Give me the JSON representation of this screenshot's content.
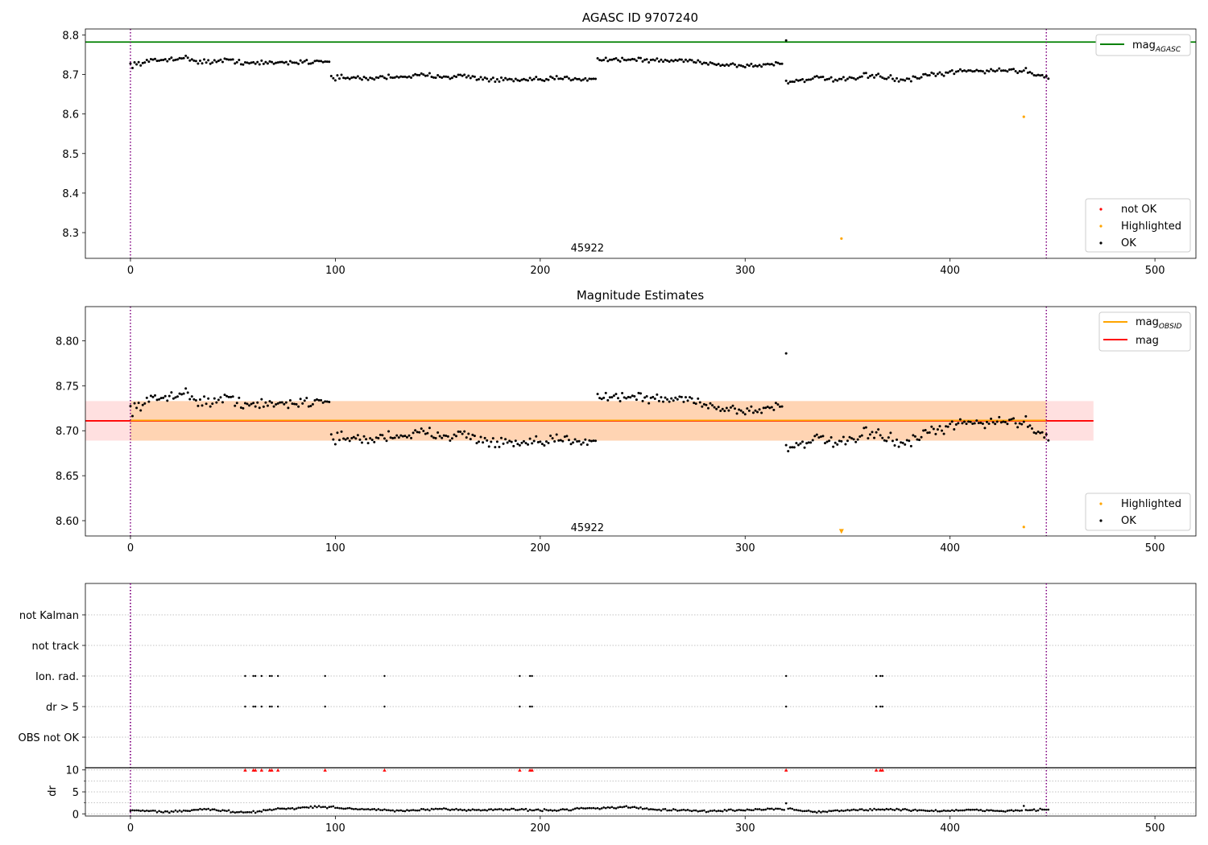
{
  "chart_data": [
    {
      "type": "scatter",
      "title": "AGASC ID 9707240",
      "xlabel": "",
      "ylabel": "",
      "xlim": [
        -22,
        520
      ],
      "ylim": [
        8.235,
        8.815
      ],
      "xticks": [
        0,
        100,
        200,
        300,
        400,
        500
      ],
      "yticks": [
        8.3,
        8.4,
        8.5,
        8.6,
        8.7,
        8.8
      ],
      "ytick_labels": [
        "8.3",
        "8.4",
        "8.5",
        "8.6",
        "8.7",
        "8.8"
      ],
      "hlines": [
        {
          "name": "mag_AGASC",
          "y": 8.782,
          "color": "#008000"
        }
      ],
      "vlines": [
        0,
        447
      ],
      "annotation": {
        "text": "45922",
        "x": 223,
        "y": 8.26
      },
      "ok_series": {
        "name": "OK",
        "color": "#000000",
        "segments": [
          {
            "x0": 0,
            "x1": 97,
            "knots": [
              8.725,
              8.735,
              8.742,
              8.732,
              8.735,
              8.728,
              8.73,
              8.732,
              8.735
            ],
            "noise": 0.007
          },
          {
            "x0": 98,
            "x1": 227,
            "knots": [
              8.692,
              8.69,
              8.695,
              8.697,
              8.695,
              8.686,
              8.685,
              8.69,
              8.69
            ],
            "noise": 0.007
          },
          {
            "x0": 228,
            "x1": 318,
            "knots": [
              8.738,
              8.738,
              8.735,
              8.735,
              8.725,
              8.722,
              8.728
            ],
            "noise": 0.006
          },
          {
            "x0": 320,
            "x1": 448,
            "knots": [
              8.682,
              8.69,
              8.686,
              8.698,
              8.685,
              8.698,
              8.708,
              8.71,
              8.71,
              8.695
            ],
            "noise": 0.007
          }
        ],
        "extra_points": [
          [
            320,
            8.786
          ]
        ]
      },
      "highlighted": {
        "name": "Highlighted",
        "color": "#FFA500",
        "points": [
          [
            347,
            8.285
          ],
          [
            436,
            8.593
          ]
        ]
      },
      "not_ok": {
        "name": "not OK",
        "color": "#FF0000",
        "points": []
      },
      "legend_upper": {
        "position": "top-right",
        "entries": [
          {
            "label": "mag",
            "sub": "AGASC"
          }
        ]
      },
      "legend_lower": {
        "position": "bottom-right",
        "entries": [
          "not OK",
          "Highlighted",
          "OK"
        ]
      }
    },
    {
      "type": "scatter",
      "title": "Magnitude Estimates",
      "xlabel": "",
      "ylabel": "",
      "xlim": [
        -22,
        520
      ],
      "ylim": [
        8.583,
        8.838
      ],
      "xticks": [
        0,
        100,
        200,
        300,
        400,
        500
      ],
      "yticks": [
        8.6,
        8.65,
        8.7,
        8.75,
        8.8
      ],
      "ytick_labels": [
        "8.60",
        "8.65",
        "8.70",
        "8.75",
        "8.80"
      ],
      "hlines": [
        {
          "name": "mag_OBSID",
          "y": 8.7115,
          "color": "#FFA500"
        },
        {
          "name": "mag",
          "y": 8.711,
          "color": "#FF0000"
        }
      ],
      "bands": [
        {
          "y0": 8.689,
          "y1": 8.733,
          "x0": -22,
          "x1": 470,
          "color": "#FF0000",
          "opacity": 0.12
        },
        {
          "y0": 8.689,
          "y1": 8.733,
          "x0": 0,
          "x1": 447,
          "color": "#FFA500",
          "opacity": 0.2
        }
      ],
      "vlines": [
        0,
        447
      ],
      "annotation": {
        "text": "45922",
        "x": 223,
        "y": 8.592
      },
      "highlighted": {
        "name": "Highlighted",
        "color": "#FFA500",
        "points": [
          [
            436,
            8.593
          ]
        ],
        "markers": [
          {
            "x": 347,
            "y": 8.588,
            "shape": "triangle-down"
          }
        ]
      },
      "legend_upper": {
        "position": "top-right",
        "entries": [
          {
            "label": "mag",
            "sub": "OBSID"
          },
          {
            "label": "mag",
            "sub": ""
          }
        ]
      },
      "legend_lower": {
        "position": "bottom-right",
        "entries": [
          "Highlighted",
          "OK"
        ]
      }
    },
    {
      "type": "scatter",
      "title": "",
      "xlabel": "",
      "ylabel": "",
      "xlim": [
        -22,
        520
      ],
      "categories": [
        "OBS not OK",
        "dr > 5",
        "Ion. rad.",
        "not track",
        "not Kalman"
      ],
      "flag_x": [
        56,
        60,
        61,
        64,
        68,
        69,
        72,
        95,
        124,
        190,
        195,
        196,
        320,
        364,
        366,
        367
      ],
      "flag_rows": [
        "dr > 5",
        "Ion. rad."
      ],
      "vlines": [
        0,
        447
      ]
    },
    {
      "type": "scatter",
      "title": "",
      "xlabel": "",
      "ylabel": "dr",
      "xlim": [
        -22,
        520
      ],
      "ylim": [
        -0.5,
        10.5
      ],
      "yticks": [
        0,
        5,
        10
      ],
      "ytick_labels": [
        "0",
        "5",
        "10"
      ],
      "minor_yticks": [
        2.5,
        7.5
      ],
      "dr_knots": [
        0.8,
        0.5,
        1.0,
        0.3,
        1.2,
        1.6,
        1.1,
        0.7,
        1.0,
        0.9,
        1.0,
        0.8,
        1.3,
        1.5,
        0.9,
        0.6,
        0.9,
        1.1,
        0.5,
        0.9,
        1.0,
        0.7,
        0.8,
        0.7,
        1.0
      ],
      "dr_noise": 0.25,
      "dr_extra_points": [
        [
          320,
          2.4
        ],
        [
          436,
          1.8
        ]
      ],
      "clipped_markers": {
        "color": "#FF0000",
        "y": 10,
        "shape": "triangle-up"
      },
      "vlines": [
        0,
        447
      ]
    }
  ]
}
